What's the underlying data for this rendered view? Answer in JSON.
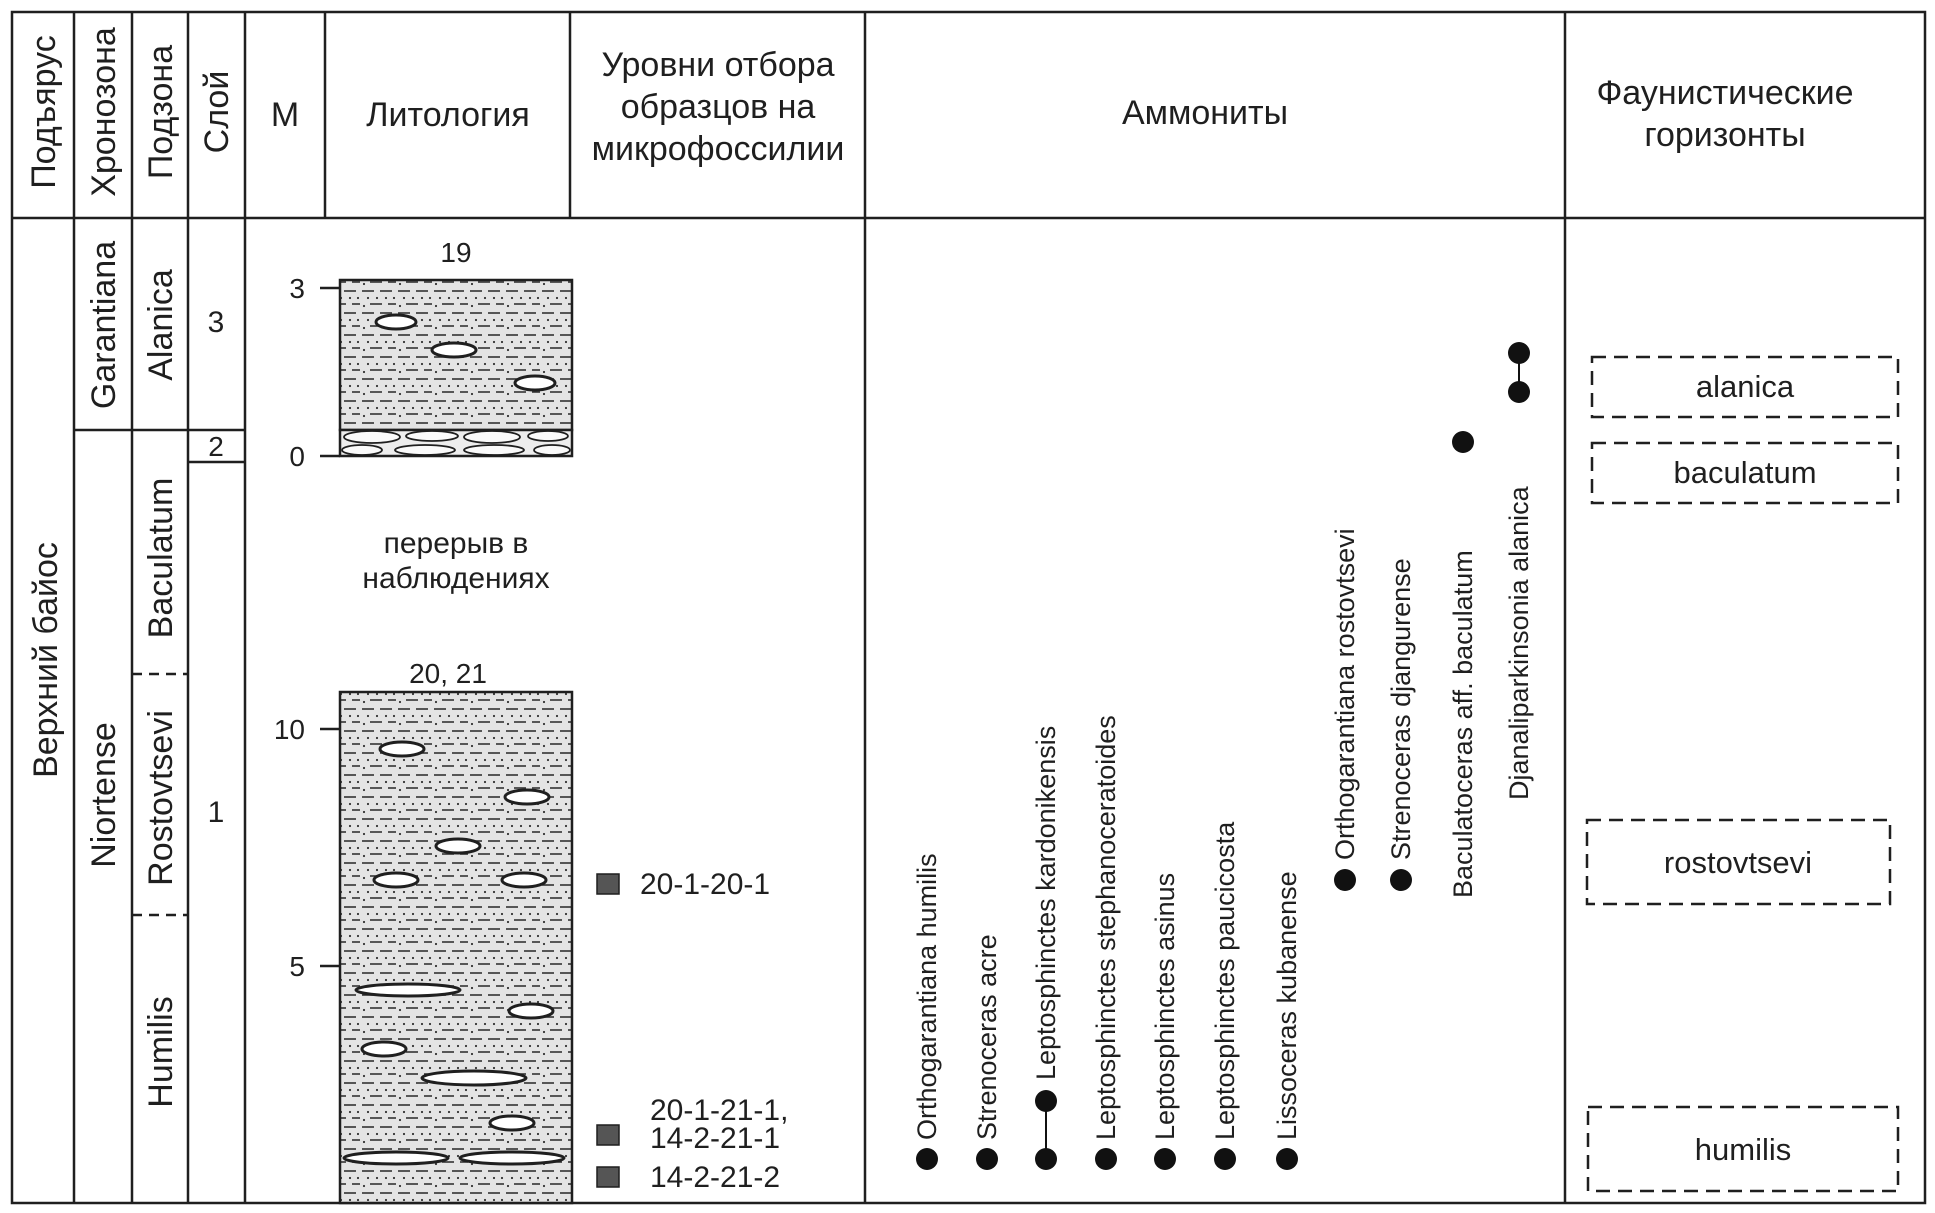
{
  "headers": {
    "substage": "Подъярус",
    "chronozone": "Хронозона",
    "subzone": "Подзона",
    "layer": "Слой",
    "meters": "М",
    "lithology": "Литология",
    "sampling_line1": "Уровни отбора",
    "sampling_line2": "образцов на",
    "sampling_line3": "микрофоссилии",
    "ammonites": "Аммониты",
    "horizons_line1": "Фаунистические",
    "horizons_line2": "горизонты"
  },
  "substage": "Верхний байос",
  "chronozones": [
    "Garantiana",
    "Niortense"
  ],
  "subzones": [
    "Alanica",
    "Baculatum",
    "Rostovtsevi",
    "Humilis"
  ],
  "layers": [
    "3",
    "2",
    "1"
  ],
  "upper_section": {
    "sample_label": "19",
    "ticks": [
      "3",
      "0"
    ]
  },
  "gap_text_line1": "перерыв в",
  "gap_text_line2": "наблюдениях",
  "lower_section": {
    "sample_label": "20, 21",
    "ticks": [
      "10",
      "5"
    ]
  },
  "samples": [
    {
      "label_line1": "20-1-20-1",
      "label_line2": ""
    },
    {
      "label_line1": "20-1-21-1,",
      "label_line2": "14-2-21-1"
    },
    {
      "label_line1": "14-2-21-2",
      "label_line2": ""
    }
  ],
  "ammonites": [
    "Orthogarantiana humilis",
    "Strenoceras acre",
    "Leptosphinctes kardonikensis",
    "Leptosphinctes stephanoceratoides",
    "Leptosphinctes asinus",
    "Leptosphinctes paucicosta",
    "Lissoceras kubanense",
    "Orthogarantiana rostovtsevi",
    "Strenoceras djangurense",
    "Baculatoceras aff. baculatum",
    "Djanaliparkinsonia alanica"
  ],
  "horizons": [
    "alanica",
    "baculatum",
    "rostovtsevi",
    "humilis"
  ],
  "colors": {
    "ink": "#1f1f1f",
    "sample_marker": "#555555",
    "rock_fill": "#e4e4e4"
  }
}
